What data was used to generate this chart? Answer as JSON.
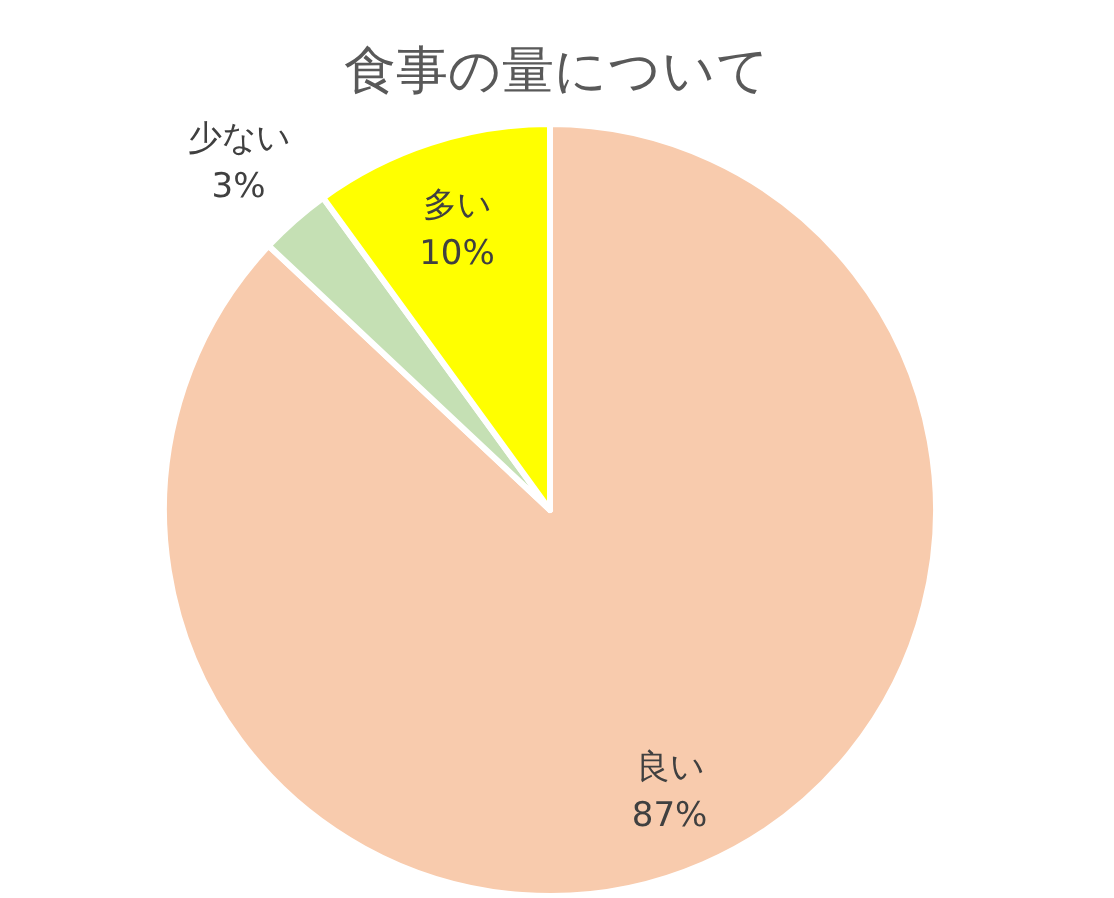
{
  "chart_data": {
    "type": "pie",
    "title": "食事の量について",
    "categories": [
      "良い",
      "少ない",
      "多い"
    ],
    "values": [
      87,
      3,
      10
    ],
    "colors": [
      "#f8cbad",
      "#c5e0b4",
      "#ffff00"
    ],
    "value_labels": [
      "87%",
      "3%",
      "10%"
    ]
  }
}
